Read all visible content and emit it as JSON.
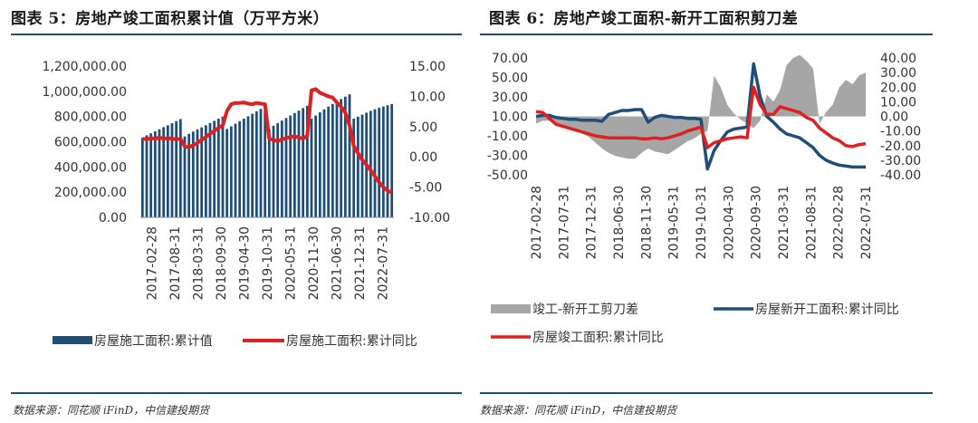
{
  "left": {
    "title": "图表 5：房地产竣工面积累计值（万平方米）",
    "source": "数据来源：同花顺 iFinD，中信建投期货",
    "chart_data": {
      "type": "bar+line",
      "left_axis": {
        "min": 0,
        "max": 1200000,
        "ticks": [
          "1,200,000.00",
          "1,000,000.00",
          "800,000.00",
          "600,000.00",
          "400,000.00",
          "200,000.00",
          "0.00"
        ]
      },
      "right_axis": {
        "min": -10,
        "max": 15,
        "ticks": [
          "15.00",
          "10.00",
          "5.00",
          "0.00",
          "-5.00",
          "-10.00"
        ]
      },
      "x_ticks": [
        "2017-02-28",
        "2017-08-31",
        "2018-03-31",
        "2018-09-30",
        "2019-04-30",
        "2019-10-31",
        "2020-05-31",
        "2020-11-30",
        "2021-06-30",
        "2021-12-31",
        "2022-07-31"
      ],
      "series": [
        {
          "name": "房屋施工面积:累计值",
          "axis": "left",
          "color": "#1f4e79",
          "type": "bar",
          "values": [
            631000,
            651000,
            667000,
            683000,
            699000,
            716000,
            731000,
            747000,
            764000,
            780000,
            642000,
            663000,
            681000,
            698000,
            714000,
            731000,
            748000,
            766000,
            783000,
            799000,
            701000,
            722000,
            743000,
            763000,
            783000,
            802000,
            822000,
            842000,
            861000,
            880000,
            698000,
            727000,
            748000,
            768000,
            788000,
            808000,
            828000,
            847000,
            867000,
            885000,
            782000,
            808000,
            833000,
            857000,
            879000,
            900000,
            920000,
            939000,
            958000,
            976000,
            783000,
            799000,
            815000,
            830000,
            845000,
            858000,
            870000,
            880000,
            890000,
            899000
          ]
        },
        {
          "name": "房屋施工面积:累计同比",
          "axis": "right",
          "color": "#e02020",
          "type": "line",
          "values": [
            3.0,
            2.9,
            3.1,
            3.0,
            3.2,
            3.0,
            3.1,
            3.0,
            2.9,
            3.0,
            1.7,
            1.6,
            1.9,
            2.3,
            2.8,
            3.3,
            3.8,
            4.3,
            4.8,
            5.2,
            7.6,
            8.7,
            8.9,
            8.9,
            9.0,
            8.8,
            8.7,
            8.9,
            8.8,
            8.7,
            3.0,
            2.8,
            2.6,
            2.9,
            3.1,
            3.3,
            3.4,
            3.2,
            3.0,
            3.5,
            11.0,
            11.2,
            10.6,
            10.3,
            10.0,
            9.8,
            9.0,
            8.3,
            7.3,
            5.2,
            1.8,
            0.6,
            -0.5,
            -1.3,
            -2.2,
            -3.2,
            -4.2,
            -5.0,
            -5.6,
            -5.9
          ]
        }
      ]
    },
    "legend": [
      {
        "label": "房屋施工面积:累计值",
        "color": "#1f4e79",
        "kind": "bar"
      },
      {
        "label": "房屋施工面积:累计同比",
        "color": "#e02020",
        "kind": "line"
      }
    ]
  },
  "right": {
    "title": "图表 6：房地产竣工面积-新开工面积剪刀差",
    "source": "数据来源：同花顺 iFinD，中信建投期货",
    "chart_data": {
      "type": "area+line",
      "left_axis": {
        "min": -50,
        "max": 70,
        "ticks": [
          "70.00",
          "50.00",
          "30.00",
          "10.00",
          "-10.00",
          "-30.00",
          "-50.00"
        ]
      },
      "right_axis": {
        "min": -40,
        "max": 40,
        "ticks": [
          "40.00",
          "30.00",
          "20.00",
          "10.00",
          "0.00",
          "-10.00",
          "-20.00",
          "-30.00",
          "-40.00"
        ]
      },
      "x_ticks": [
        "2017-02-28",
        "2017-07-31",
        "2017-12-31",
        "2018-06-30",
        "2018-11-30",
        "2019-05-31",
        "2019-10-31",
        "2020-04-30",
        "2020-09-30",
        "2021-03-31",
        "2021-08-31",
        "2022-02-28",
        "2022-07-31"
      ],
      "series": [
        {
          "name": "竣工-新开工剪刀差",
          "axis": "right",
          "color": "#a6a6a6",
          "type": "area",
          "values": [
            -5,
            -3,
            -3,
            -4,
            -6,
            -8,
            -10,
            -12,
            -14,
            -18,
            -22,
            -25,
            -27,
            -28,
            -29,
            -29,
            -25,
            -22,
            -24,
            -25,
            -26,
            -23,
            -20,
            -17,
            -15,
            -12,
            -10,
            28,
            20,
            8,
            2,
            -2,
            -5,
            -8,
            -3,
            15,
            10,
            18,
            35,
            40,
            42,
            38,
            33,
            -5,
            3,
            8,
            20,
            25,
            22,
            28,
            30
          ]
        },
        {
          "name": "房屋新开工面积:累计同比",
          "axis": "left",
          "color": "#1f4e79",
          "type": "line",
          "values": [
            10,
            11,
            11,
            9,
            8,
            7,
            7,
            6,
            6,
            6,
            5,
            12,
            14,
            16,
            16,
            17,
            17,
            4,
            9,
            11,
            10,
            9,
            9,
            8,
            8,
            7,
            -44,
            -25,
            -15,
            -6,
            -3,
            -2,
            -1,
            64,
            30,
            10,
            4,
            -3,
            -8,
            -10,
            -12,
            -17,
            -22,
            -30,
            -35,
            -38,
            -40,
            -41,
            -42,
            -42,
            -42
          ]
        },
        {
          "name": "房屋竣工面积:累计同比",
          "axis": "left",
          "color": "#e02020",
          "type": "line",
          "values": [
            15,
            14,
            8,
            2,
            0,
            -2,
            -4,
            -6,
            -8,
            -10,
            -11,
            -12,
            -12,
            -12,
            -12,
            -12,
            -13,
            -13,
            -12,
            -13,
            -12,
            -10,
            -8,
            -5,
            -3,
            -1,
            -22,
            -17,
            -15,
            -13,
            -12,
            -11,
            -12,
            40,
            22,
            12,
            12,
            20,
            18,
            16,
            14,
            9,
            6,
            -2,
            -7,
            -12,
            -15,
            -20,
            -21,
            -19,
            -18
          ]
        }
      ]
    },
    "legend": [
      {
        "label": "竣工-新开工剪刀差",
        "color": "#a6a6a6",
        "kind": "area"
      },
      {
        "label": "房屋新开工面积:累计同比",
        "color": "#1f4e79",
        "kind": "line"
      },
      {
        "label": "房屋竣工面积:累计同比",
        "color": "#e02020",
        "kind": "line"
      }
    ]
  }
}
